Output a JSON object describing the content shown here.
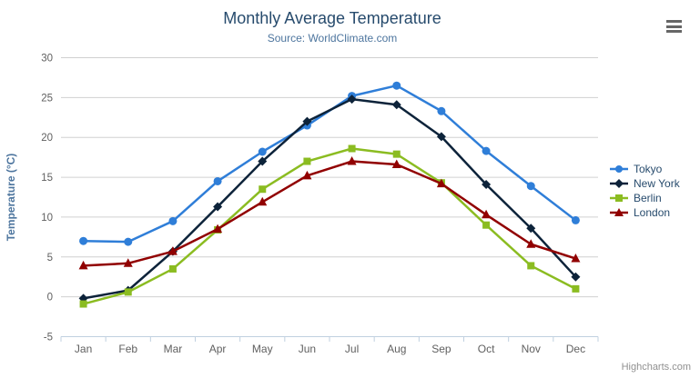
{
  "chart_data": {
    "type": "line",
    "title": "Monthly Average Temperature",
    "subtitle": "Source: WorldClimate.com",
    "xlabel": "",
    "ylabel": "Temperature (°C)",
    "ylim": [
      -5,
      30
    ],
    "ytick_interval": 5,
    "yticks": [
      -5,
      0,
      5,
      10,
      15,
      20,
      25,
      30
    ],
    "grid": true,
    "legend_position": "right",
    "categories": [
      "Jan",
      "Feb",
      "Mar",
      "Apr",
      "May",
      "Jun",
      "Jul",
      "Aug",
      "Sep",
      "Oct",
      "Nov",
      "Dec"
    ],
    "series": [
      {
        "name": "Tokyo",
        "color": "#2f7ed8",
        "marker": "circle",
        "values": [
          7.0,
          6.9,
          9.5,
          14.5,
          18.2,
          21.5,
          25.2,
          26.5,
          23.3,
          18.3,
          13.9,
          9.6
        ]
      },
      {
        "name": "New York",
        "color": "#0d233a",
        "marker": "diamond",
        "values": [
          -0.2,
          0.8,
          5.7,
          11.3,
          17.0,
          22.0,
          24.8,
          24.1,
          20.1,
          14.1,
          8.6,
          2.5
        ]
      },
      {
        "name": "Berlin",
        "color": "#8bbc21",
        "marker": "square",
        "values": [
          -0.9,
          0.6,
          3.5,
          8.4,
          13.5,
          17.0,
          18.6,
          17.9,
          14.3,
          9.0,
          3.9,
          1.0
        ]
      },
      {
        "name": "London",
        "color": "#910000",
        "marker": "triangle",
        "values": [
          3.9,
          4.2,
          5.7,
          8.5,
          11.9,
          15.2,
          17.0,
          16.6,
          14.2,
          10.3,
          6.6,
          4.8
        ]
      }
    ]
  },
  "style_colors": {
    "title": "#274b6d",
    "subtitle": "#4d759e",
    "axis_title": "#4d759e",
    "axis_labels": "#606060",
    "gridline": "#d0d0d0",
    "axis_line": "#c0d0e0",
    "tick": "#c0d0e0",
    "legend_text": "#274b6d",
    "credits": "#909090",
    "menu_icon": "#666666"
  },
  "credits": {
    "text": "Highcharts.com"
  }
}
